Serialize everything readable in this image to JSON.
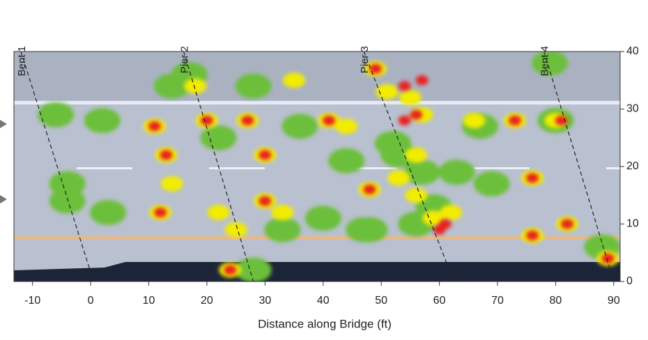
{
  "chart_data": {
    "type": "heatmap-overlay",
    "x_label": "Distance along Bridge (ft)",
    "xlim": [
      -13.2,
      91.1
    ],
    "xticks": [
      -10,
      0,
      10,
      20,
      30,
      40,
      50,
      60,
      70,
      80,
      90
    ],
    "ylim": [
      0,
      40
    ],
    "yticks": [
      0,
      10,
      20,
      30,
      40
    ],
    "supports": [
      {
        "label": "Bent 1",
        "x_top": -12,
        "x_bottom": 0.5
      },
      {
        "label": "Pier 2",
        "x_top": 16,
        "x_bottom": 28
      },
      {
        "label": "Pier 3",
        "x_top": 47,
        "x_bottom": 62.5
      },
      {
        "label": "Bent 4",
        "x_top": 78,
        "x_bottom": 90
      }
    ],
    "series": [
      {
        "color": "#6cbf3a",
        "x": [
          -4,
          -4,
          2,
          44,
          53,
          57,
          79,
          28,
          17,
          14,
          63,
          69,
          67,
          59,
          22,
          36,
          28,
          52,
          40,
          47,
          3,
          88,
          33,
          56,
          48,
          80,
          -6
        ],
        "y": [
          17,
          14,
          28,
          21,
          22,
          19,
          38,
          2,
          36,
          34,
          19,
          17,
          27,
          13,
          25,
          27,
          34,
          24,
          11,
          9,
          12,
          6,
          9,
          10,
          9,
          28,
          29
        ]
      },
      {
        "color": "#f2ec00",
        "x": [
          11,
          20,
          27,
          13,
          14,
          18,
          22,
          25,
          30,
          30,
          33,
          41,
          44,
          49,
          51,
          55,
          57,
          56,
          53,
          56,
          59,
          62,
          76,
          76,
          82,
          80,
          73,
          12,
          24,
          89,
          48,
          35,
          66
        ],
        "y": [
          27,
          28,
          28,
          22,
          17,
          34,
          12,
          9,
          22,
          14,
          12,
          28,
          27,
          37,
          33,
          32,
          29,
          22,
          18,
          15,
          11,
          12,
          18,
          8,
          10,
          28,
          28,
          12,
          2,
          4,
          16,
          35,
          28
        ]
      },
      {
        "color": "#e8201e",
        "x": [
          24,
          30,
          30,
          27,
          20,
          11,
          12,
          49,
          54,
          57,
          56,
          54,
          60,
          61,
          76,
          76,
          82,
          81,
          73,
          89,
          41,
          13,
          48
        ],
        "y": [
          2,
          14,
          22,
          28,
          28,
          27,
          12,
          37,
          34,
          35,
          29,
          28,
          9,
          10,
          18,
          8,
          10,
          28,
          28,
          4,
          28,
          22,
          16
        ]
      }
    ]
  }
}
